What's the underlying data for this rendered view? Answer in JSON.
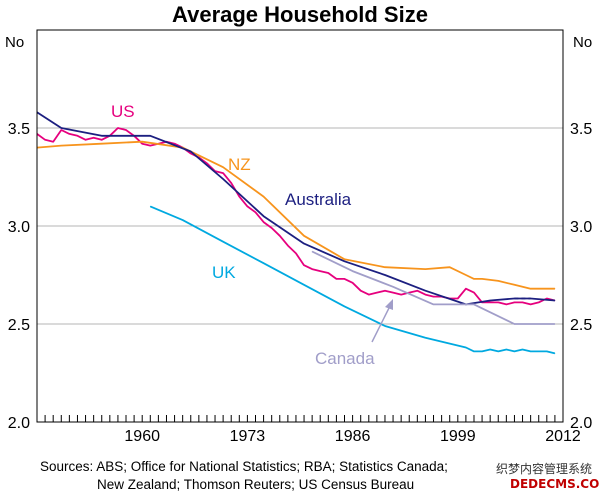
{
  "chart_data": {
    "type": "line",
    "title": "Average Household Size",
    "ylabel_left": "No",
    "ylabel_right": "No",
    "ylim": [
      2.0,
      4.0
    ],
    "xlim": [
      1947,
      2012
    ],
    "y_ticks": [
      "2.0",
      "2.5",
      "3.0",
      "3.5"
    ],
    "x_ticks": [
      "1960",
      "1973",
      "1986",
      "1999",
      "2012"
    ],
    "grid": true,
    "series": [
      {
        "name": "US",
        "color": "#e6007e",
        "x": [
          1947,
          1948,
          1949,
          1950,
          1951,
          1952,
          1953,
          1954,
          1955,
          1956,
          1957,
          1958,
          1959,
          1960,
          1961,
          1962,
          1963,
          1964,
          1965,
          1966,
          1967,
          1968,
          1969,
          1970,
          1971,
          1972,
          1973,
          1974,
          1975,
          1976,
          1977,
          1978,
          1979,
          1980,
          1981,
          1982,
          1983,
          1984,
          1985,
          1986,
          1987,
          1988,
          1989,
          1990,
          1991,
          1992,
          1993,
          1994,
          1995,
          1996,
          1997,
          1998,
          1999,
          2000,
          2001,
          2002,
          2003,
          2004,
          2005,
          2006,
          2007,
          2008,
          2009,
          2010,
          2011
        ],
        "values": [
          3.47,
          3.44,
          3.43,
          3.49,
          3.47,
          3.46,
          3.44,
          3.45,
          3.44,
          3.46,
          3.5,
          3.49,
          3.46,
          3.42,
          3.41,
          3.42,
          3.43,
          3.42,
          3.4,
          3.37,
          3.35,
          3.32,
          3.28,
          3.27,
          3.22,
          3.15,
          3.1,
          3.07,
          3.02,
          2.99,
          2.95,
          2.9,
          2.86,
          2.8,
          2.78,
          2.77,
          2.76,
          2.73,
          2.73,
          2.71,
          2.67,
          2.65,
          2.66,
          2.67,
          2.66,
          2.65,
          2.66,
          2.67,
          2.65,
          2.64,
          2.64,
          2.63,
          2.63,
          2.68,
          2.66,
          2.61,
          2.61,
          2.61,
          2.6,
          2.61,
          2.61,
          2.6,
          2.61,
          2.63,
          2.62
        ]
      },
      {
        "name": "NZ",
        "color": "#f7941d",
        "x": [
          1947,
          1950,
          1955,
          1960,
          1965,
          1970,
          1975,
          1980,
          1985,
          1990,
          1995,
          1998,
          2000,
          2001,
          2002,
          2004,
          2006,
          2008,
          2009,
          2011
        ],
        "values": [
          3.4,
          3.41,
          3.42,
          3.43,
          3.4,
          3.3,
          3.15,
          2.95,
          2.83,
          2.79,
          2.78,
          2.79,
          2.75,
          2.73,
          2.73,
          2.72,
          2.7,
          2.68,
          2.68,
          2.68
        ]
      },
      {
        "name": "Australia",
        "color": "#1c1f80",
        "x": [
          1947,
          1950,
          1955,
          1960,
          1961,
          1966,
          1970,
          1975,
          1980,
          1985,
          1990,
          1995,
          2000,
          2003,
          2006,
          2008,
          2011
        ],
        "values": [
          3.58,
          3.5,
          3.46,
          3.46,
          3.46,
          3.38,
          3.24,
          3.05,
          2.91,
          2.82,
          2.75,
          2.67,
          2.6,
          2.62,
          2.63,
          2.63,
          2.62
        ]
      },
      {
        "name": "UK",
        "color": "#00a9e0",
        "x": [
          1961,
          1965,
          1970,
          1975,
          1980,
          1985,
          1990,
          1995,
          2000,
          2001,
          2002,
          2003,
          2004,
          2005,
          2006,
          2007,
          2008,
          2009,
          2010,
          2011
        ],
        "values": [
          3.1,
          3.03,
          2.92,
          2.81,
          2.7,
          2.59,
          2.49,
          2.43,
          2.38,
          2.36,
          2.36,
          2.37,
          2.36,
          2.37,
          2.36,
          2.37,
          2.36,
          2.36,
          2.36,
          2.35
        ]
      },
      {
        "name": "Canada",
        "color": "#a19ec9",
        "x": [
          1981,
          1986,
          1991,
          1996,
          2001,
          2006,
          2011
        ],
        "values": [
          2.87,
          2.77,
          2.69,
          2.6,
          2.6,
          2.5,
          2.5
        ]
      }
    ]
  },
  "source_text": [
    "Sources: ABS; Office for National Statistics; RBA; Statistics Canada;",
    "New Zealand; Thomson Reuters; US Census Bureau"
  ],
  "watermark_text": "织梦内容管理系统",
  "watermark_url": "DEDECMS.COM"
}
